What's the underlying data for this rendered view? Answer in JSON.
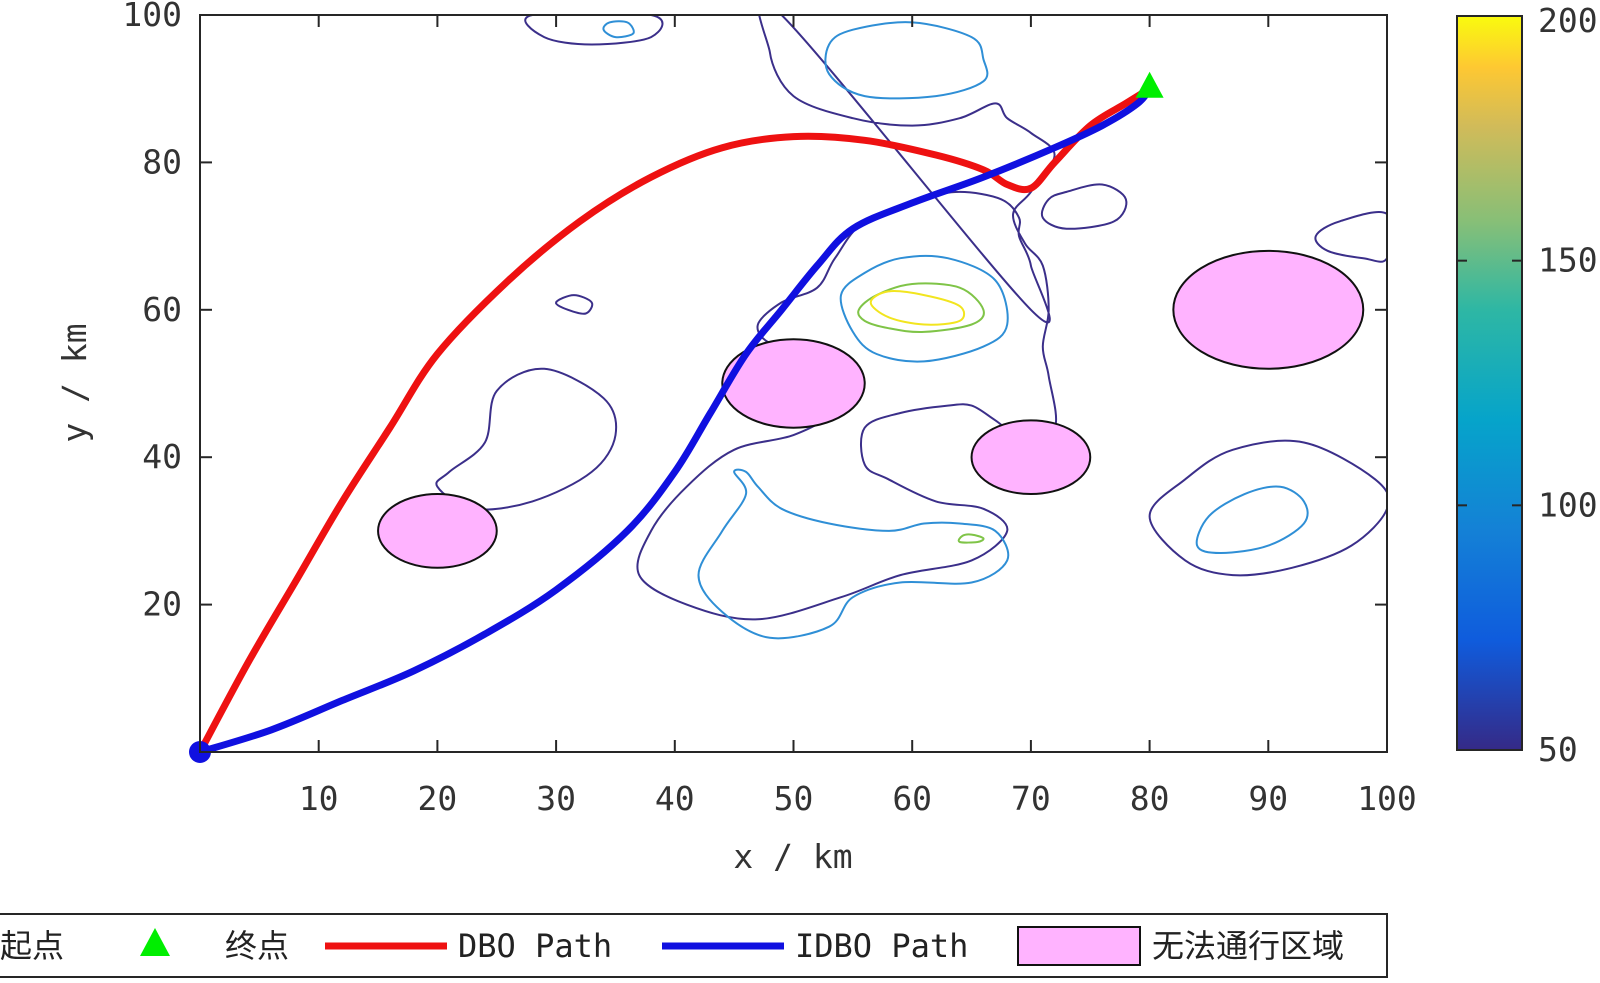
{
  "chart_data": {
    "type": "contour",
    "xlabel": "x  /  km",
    "ylabel": "y  /  km",
    "xlim": [
      0,
      100
    ],
    "ylim": [
      0,
      100
    ],
    "xticks": [
      10,
      20,
      30,
      40,
      50,
      60,
      70,
      80,
      90,
      100
    ],
    "yticks": [
      20,
      40,
      60,
      80,
      100
    ],
    "grid": false,
    "colorbar": {
      "range": [
        50,
        200
      ],
      "ticks": [
        50,
        100,
        150,
        200
      ],
      "colormap": "parula"
    },
    "start": {
      "x": 0,
      "y": 0,
      "color": "#1010e0"
    },
    "goal": {
      "x": 80,
      "y": 90,
      "color": "#00ee00"
    },
    "obstacles": [
      {
        "cx": 20,
        "cy": 30,
        "rx": 5,
        "ry": 5,
        "color": "#ffb3ff"
      },
      {
        "cx": 50,
        "cy": 50,
        "rx": 6,
        "ry": 6,
        "color": "#ffb3ff"
      },
      {
        "cx": 70,
        "cy": 40,
        "rx": 5,
        "ry": 5,
        "color": "#ffb3ff"
      },
      {
        "cx": 90,
        "cy": 60,
        "rx": 8,
        "ry": 8,
        "color": "#ffb3ff"
      }
    ],
    "contours": [
      {
        "level": 50,
        "color": "#3b2f8a",
        "points": [
          [
            24,
            42
          ],
          [
            21,
            38
          ],
          [
            20,
            36
          ],
          [
            23,
            33
          ],
          [
            28,
            34
          ],
          [
            33,
            38
          ],
          [
            35,
            43
          ],
          [
            34,
            48
          ],
          [
            29,
            52
          ],
          [
            25,
            49
          ]
        ]
      },
      {
        "level": 50,
        "color": "#3b2f8a",
        "points": [
          [
            31,
            60
          ],
          [
            30,
            61
          ],
          [
            31.5,
            62
          ],
          [
            33,
            61
          ],
          [
            32.5,
            59.5
          ]
        ]
      },
      {
        "level": 50,
        "color": "#3b2f8a",
        "points": [
          [
            28,
            100
          ],
          [
            29,
            97
          ],
          [
            33,
            96
          ],
          [
            38,
            97
          ],
          [
            38,
            100
          ]
        ]
      },
      {
        "level": 50,
        "color": "#3b2f8a",
        "points": [
          [
            49,
            100
          ],
          [
            48,
            95
          ],
          [
            50,
            89
          ],
          [
            55,
            86
          ],
          [
            60,
            85
          ],
          [
            64,
            86
          ],
          [
            67,
            88
          ],
          [
            68,
            86
          ],
          [
            70,
            84
          ],
          [
            72,
            81
          ],
          [
            70,
            76
          ],
          [
            68.5,
            73
          ],
          [
            69.5,
            69
          ],
          [
            71,
            66
          ],
          [
            71.5,
            60
          ],
          [
            71,
            55
          ],
          [
            71.5,
            51
          ],
          [
            72,
            44
          ],
          [
            69,
            43
          ],
          [
            67,
            45
          ],
          [
            65,
            47
          ],
          [
            63,
            47
          ],
          [
            59,
            46
          ],
          [
            56,
            44
          ],
          [
            56,
            39
          ],
          [
            58,
            37
          ],
          [
            62,
            34
          ],
          [
            66,
            33
          ],
          [
            68,
            30
          ],
          [
            65,
            26
          ],
          [
            59,
            24
          ],
          [
            54,
            21
          ],
          [
            47,
            18
          ],
          [
            41,
            20
          ],
          [
            37,
            24
          ],
          [
            38,
            30
          ],
          [
            41,
            36
          ],
          [
            45,
            41
          ],
          [
            50,
            43
          ],
          [
            53,
            46
          ],
          [
            53,
            51
          ],
          [
            51,
            55
          ],
          [
            48,
            55.5
          ],
          [
            47,
            58
          ],
          [
            49,
            61
          ],
          [
            52,
            63
          ],
          [
            53.5,
            67
          ],
          [
            56,
            72
          ],
          [
            61,
            75
          ],
          [
            64,
            76
          ],
          [
            67.5,
            75
          ],
          [
            69,
            72.5
          ],
          [
            69,
            70
          ],
          [
            70,
            66
          ],
          [
            70,
            60
          ]
        ]
      },
      {
        "level": 50,
        "color": "#3b2f8a",
        "points": [
          [
            73,
            76
          ],
          [
            76,
            77
          ],
          [
            78,
            75
          ],
          [
            77,
            72
          ],
          [
            73,
            71
          ],
          [
            71,
            72.5
          ],
          [
            71.5,
            75
          ]
        ]
      },
      {
        "level": 50,
        "color": "#3b2f8a",
        "points": [
          [
            100,
            73
          ],
          [
            96,
            72
          ],
          [
            94,
            70
          ],
          [
            95,
            68
          ],
          [
            98,
            67
          ],
          [
            100,
            67
          ]
        ]
      },
      {
        "level": 50,
        "color": "#3b2f8a",
        "points": [
          [
            80,
            32
          ],
          [
            83,
            26
          ],
          [
            87,
            24
          ],
          [
            92,
            25
          ],
          [
            97,
            28
          ],
          [
            100,
            33
          ],
          [
            99,
            37
          ],
          [
            93,
            42
          ],
          [
            87,
            41
          ],
          [
            83,
            37
          ]
        ]
      },
      {
        "level": 100,
        "color": "#2f8fd6",
        "points": [
          [
            53,
            96
          ],
          [
            55,
            98
          ],
          [
            60,
            99
          ],
          [
            65,
            97
          ],
          [
            66,
            94
          ],
          [
            66,
            91
          ],
          [
            62,
            89
          ],
          [
            56,
            89
          ],
          [
            53,
            92
          ]
        ]
      },
      {
        "level": 100,
        "color": "#2f8fd6",
        "points": [
          [
            34,
            98
          ],
          [
            35,
            97
          ],
          [
            36.5,
            97.5
          ],
          [
            36,
            99
          ],
          [
            34.5,
            99
          ]
        ]
      },
      {
        "level": 100,
        "color": "#2f8fd6",
        "points": [
          [
            54,
            62
          ],
          [
            56,
            65
          ],
          [
            59,
            67
          ],
          [
            63,
            67
          ],
          [
            67,
            64
          ],
          [
            68,
            58
          ],
          [
            66,
            55
          ],
          [
            61,
            53
          ],
          [
            57,
            54
          ],
          [
            55,
            57
          ]
        ]
      },
      {
        "level": 100,
        "color": "#2f8fd6",
        "points": [
          [
            42,
            24
          ],
          [
            44,
            19
          ],
          [
            48,
            15.5
          ],
          [
            53,
            17
          ],
          [
            55,
            21
          ],
          [
            59,
            23
          ],
          [
            65,
            23
          ],
          [
            68,
            26
          ],
          [
            67,
            30
          ],
          [
            64,
            31
          ],
          [
            61,
            31
          ],
          [
            58,
            30
          ],
          [
            53,
            31
          ],
          [
            49,
            33
          ],
          [
            47,
            36
          ],
          [
            46,
            38
          ],
          [
            45,
            38
          ],
          [
            46,
            35
          ],
          [
            44,
            30
          ]
        ]
      },
      {
        "level": 100,
        "color": "#2f8fd6",
        "points": [
          [
            84,
            28
          ],
          [
            86,
            27
          ],
          [
            90,
            28
          ],
          [
            93,
            31
          ],
          [
            93,
            34
          ],
          [
            91,
            36
          ],
          [
            88,
            35
          ],
          [
            85,
            32
          ]
        ]
      },
      {
        "level": 150,
        "color": "#7fc447",
        "points": [
          [
            55.5,
            60
          ],
          [
            57,
            62
          ],
          [
            60,
            63.5
          ],
          [
            64,
            63
          ],
          [
            66,
            60
          ],
          [
            65,
            58
          ],
          [
            61,
            57
          ],
          [
            58,
            57.5
          ],
          [
            56,
            58.5
          ]
        ]
      },
      {
        "level": 150,
        "color": "#7fc447",
        "points": [
          [
            64,
            28.5
          ],
          [
            65.5,
            28.5
          ],
          [
            66,
            29
          ],
          [
            65,
            29.5
          ],
          [
            64.2,
            29.3
          ]
        ]
      },
      {
        "level": 200,
        "color": "#f2e51f",
        "points": [
          [
            56.5,
            61
          ],
          [
            58,
            62.5
          ],
          [
            61,
            62
          ],
          [
            64,
            60.5
          ],
          [
            64,
            58.5
          ],
          [
            61,
            58
          ],
          [
            58,
            59
          ]
        ]
      }
    ],
    "series": [
      {
        "name": "DBO Path",
        "color": "#ee1111",
        "points": [
          [
            0,
            0
          ],
          [
            4,
            12
          ],
          [
            8,
            23
          ],
          [
            12,
            34
          ],
          [
            16,
            44
          ],
          [
            20,
            54
          ],
          [
            26,
            64
          ],
          [
            32,
            72
          ],
          [
            38,
            78
          ],
          [
            44,
            82
          ],
          [
            50,
            83.5
          ],
          [
            56,
            83
          ],
          [
            62,
            81
          ],
          [
            66,
            79
          ],
          [
            68,
            77
          ],
          [
            70,
            76.5
          ],
          [
            72,
            80
          ],
          [
            75,
            85
          ],
          [
            78,
            88
          ],
          [
            80,
            90
          ]
        ]
      },
      {
        "name": "IDBO Path",
        "color": "#1010e0",
        "points": [
          [
            0,
            0
          ],
          [
            6,
            3
          ],
          [
            12,
            7
          ],
          [
            18,
            11
          ],
          [
            24,
            16
          ],
          [
            30,
            22
          ],
          [
            36,
            30
          ],
          [
            40,
            38
          ],
          [
            43,
            46
          ],
          [
            46,
            54
          ],
          [
            49,
            60
          ],
          [
            52,
            66
          ],
          [
            55,
            71
          ],
          [
            60,
            74.5
          ],
          [
            66,
            78
          ],
          [
            72,
            82
          ],
          [
            76,
            85
          ],
          [
            79,
            88
          ],
          [
            80,
            90
          ]
        ]
      }
    ],
    "legend": {
      "placement": "bottom",
      "entries": [
        {
          "label": "起点",
          "marker": "circle",
          "color": "#1010e0"
        },
        {
          "label": "终点",
          "marker": "triangle",
          "color": "#00ee00"
        },
        {
          "label": "DBO Path",
          "marker": "line",
          "color": "#ee1111"
        },
        {
          "label": "IDBO Path",
          "marker": "line",
          "color": "#1010e0"
        },
        {
          "label": "无法通行区域",
          "marker": "patch",
          "color": "#ffb3ff"
        }
      ]
    }
  }
}
